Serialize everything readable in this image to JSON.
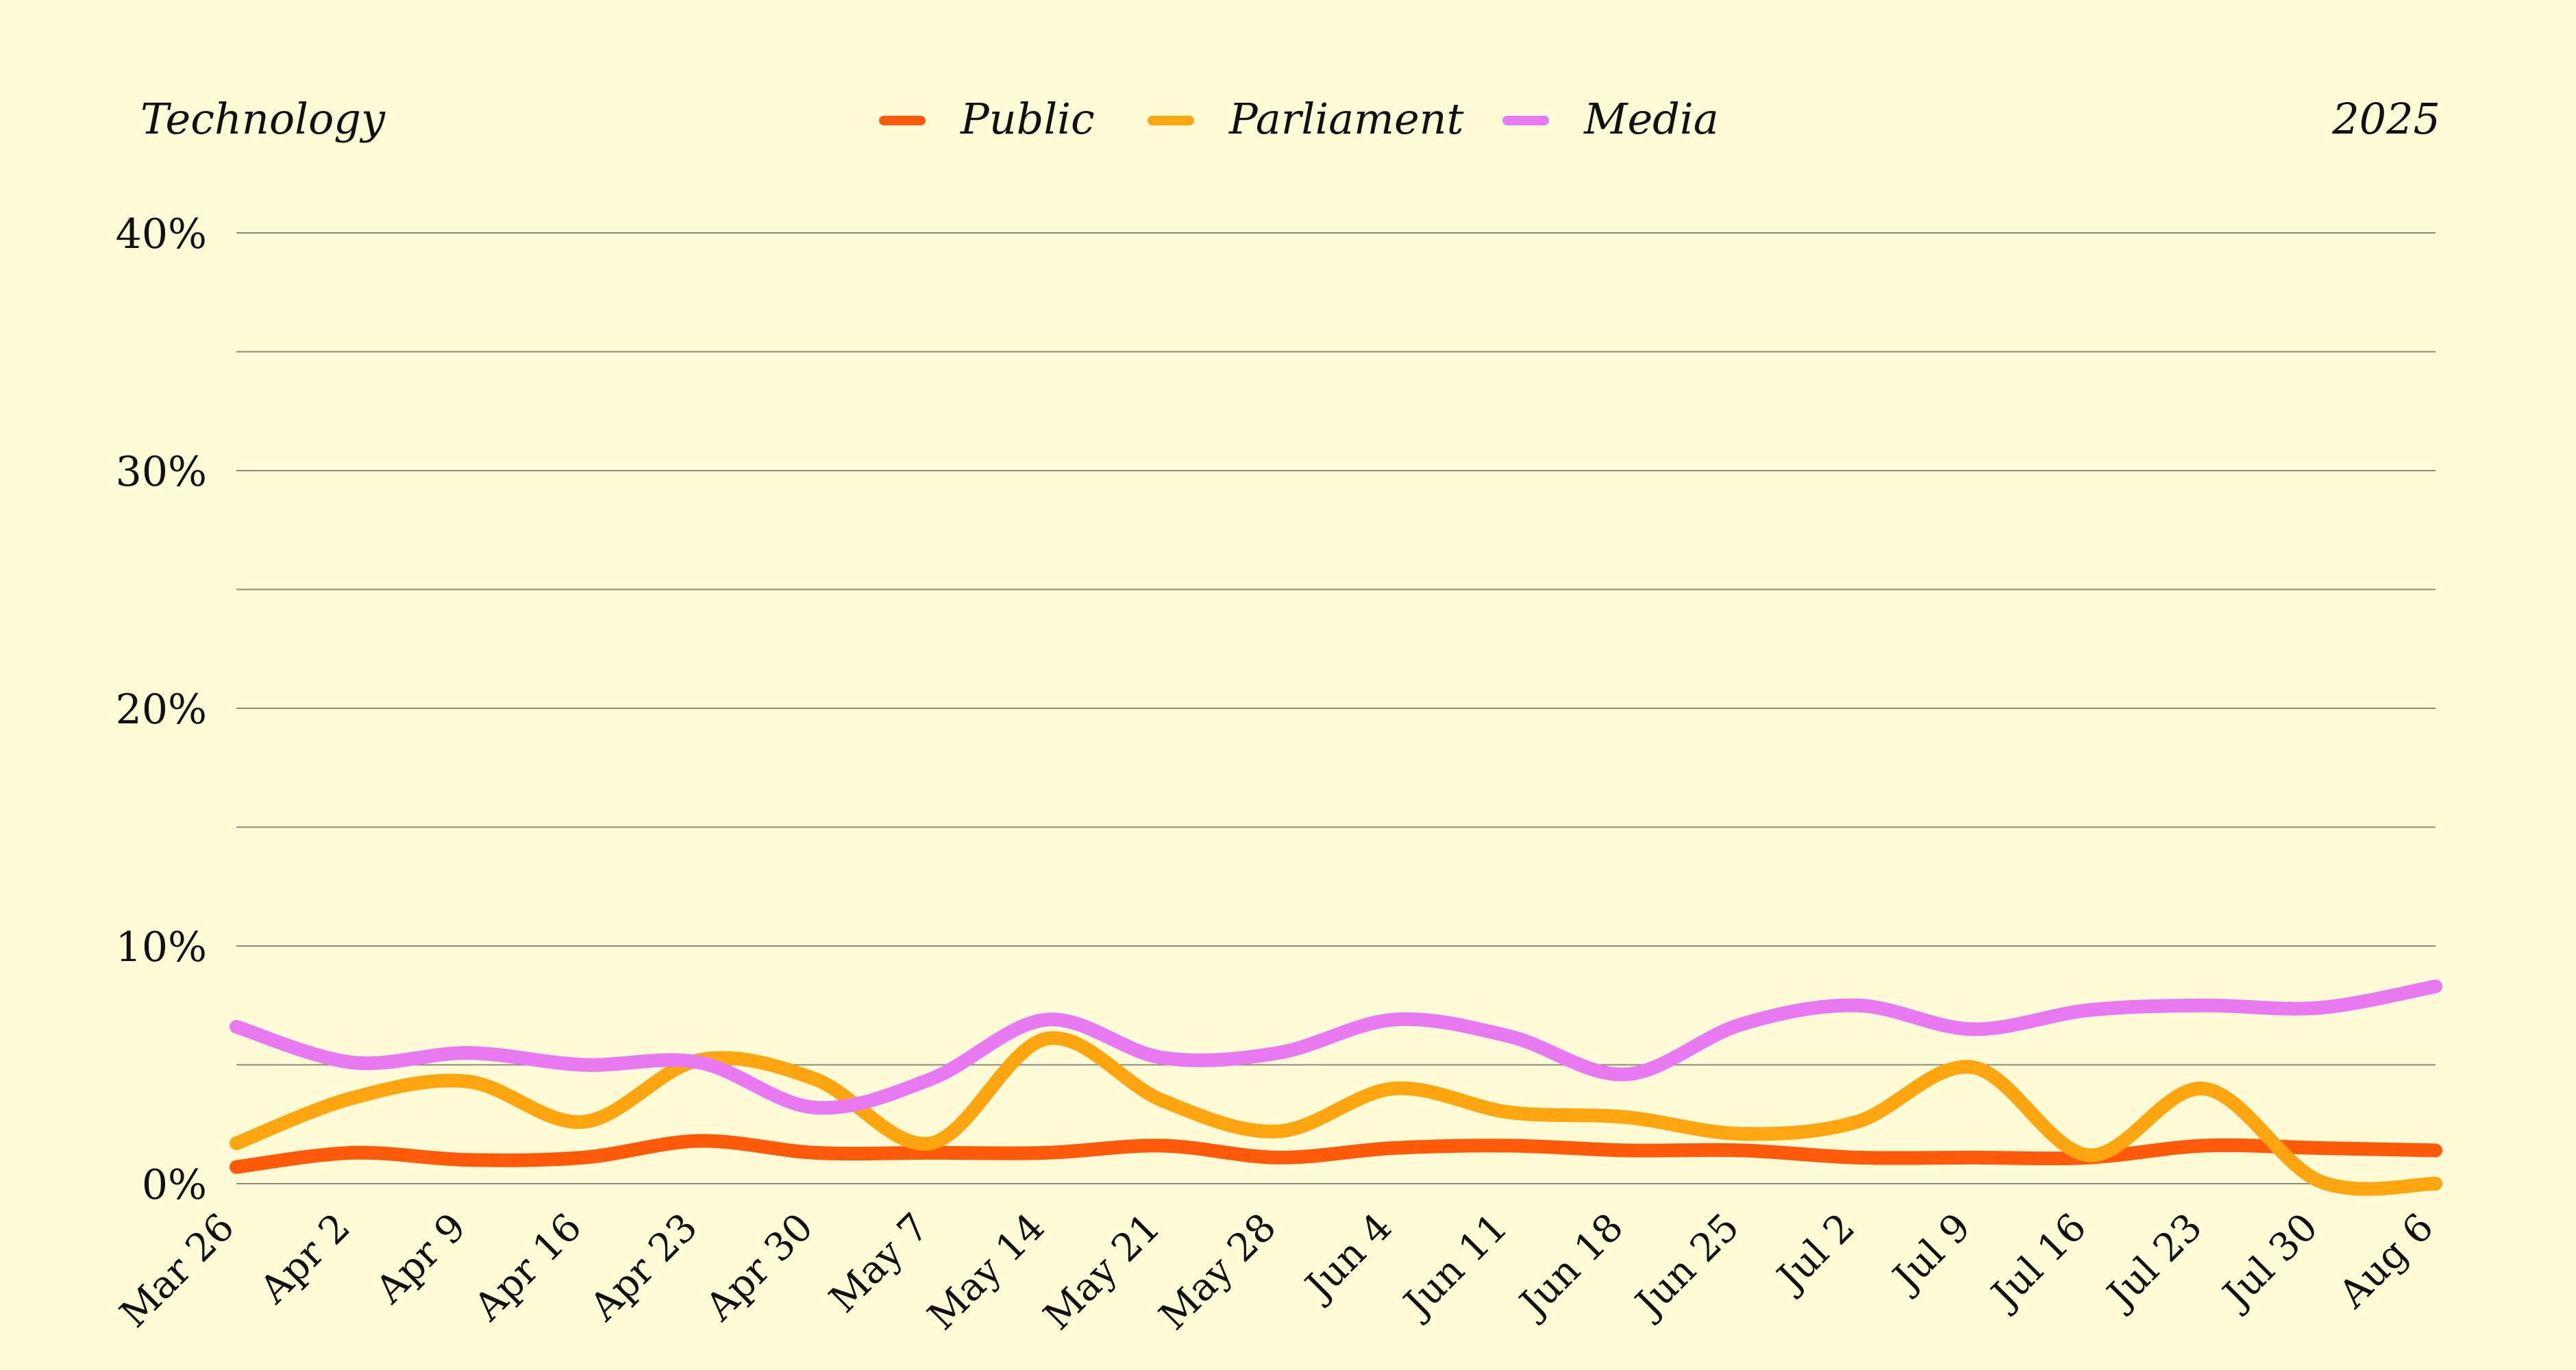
{
  "chart_data": {
    "type": "line",
    "title": "Technology",
    "subtitle": "2025",
    "xlabel": "",
    "ylabel": "",
    "ylim": [
      0,
      40
    ],
    "yticks": [
      "0%",
      "10%",
      "20%",
      "30%",
      "40%"
    ],
    "grid": true,
    "legend": "top-center",
    "categories": [
      "Mar 26",
      "Apr 2",
      "Apr 9",
      "Apr 16",
      "Apr 23",
      "Apr 30",
      "May 7",
      "May 14",
      "May 21",
      "May 28",
      "Jun 4",
      "Jun 11",
      "Jun 18",
      "Jun 25",
      "Jul 2",
      "Jul 9",
      "Jul 16",
      "Jul 23",
      "Jul 30",
      "Aug 6"
    ],
    "series": [
      {
        "name": "Public",
        "color": "#ff5a0a",
        "values": [
          0.7,
          1.3,
          1.0,
          1.1,
          1.8,
          1.3,
          1.3,
          1.3,
          1.6,
          1.1,
          1.5,
          1.6,
          1.4,
          1.4,
          1.1,
          1.1,
          1.1,
          1.6,
          1.5,
          1.4
        ]
      },
      {
        "name": "Parliament",
        "color": "#ffa510",
        "values": [
          1.7,
          3.6,
          4.3,
          2.6,
          5.2,
          4.4,
          1.7,
          6.1,
          3.5,
          2.2,
          4.0,
          3.0,
          2.8,
          2.1,
          2.6,
          4.9,
          1.2,
          4.0,
          0.1,
          0.0
        ]
      },
      {
        "name": "Media",
        "color": "#e879f0",
        "values": [
          6.6,
          5.1,
          5.5,
          5.0,
          5.1,
          3.2,
          4.4,
          6.9,
          5.3,
          5.5,
          6.9,
          6.2,
          4.6,
          6.7,
          7.5,
          6.5,
          7.3,
          7.5,
          7.4,
          8.3
        ]
      }
    ]
  }
}
